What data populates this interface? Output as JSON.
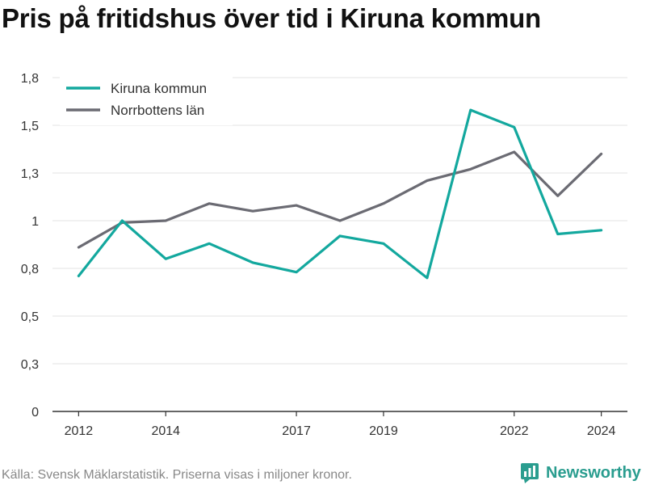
{
  "chart_data": {
    "type": "line",
    "title": "Pris på fritidshus över tid i Kiruna kommun",
    "x": [
      2012,
      2013,
      2014,
      2015,
      2016,
      2017,
      2018,
      2019,
      2020,
      2021,
      2022,
      2023,
      2024
    ],
    "x_tick_labels": [
      "2012",
      "2014",
      "2017",
      "2019",
      "2022",
      "2024"
    ],
    "x_tick_values": [
      2012,
      2014,
      2017,
      2019,
      2022,
      2024
    ],
    "y_tick_labels": [
      "0",
      "0,3",
      "0,5",
      "0,8",
      "1",
      "1,3",
      "1,5",
      "1,8"
    ],
    "y_tick_values": [
      0,
      0.25,
      0.5,
      0.75,
      1.0,
      1.25,
      1.5,
      1.75
    ],
    "ylim": [
      0,
      1.75
    ],
    "xlim": [
      2011.4,
      2024.6
    ],
    "grid": true,
    "legend_position": "top-left",
    "series": [
      {
        "name": "Kiruna kommun",
        "color": "#13a89e",
        "values": [
          0.71,
          1.0,
          0.8,
          0.88,
          0.78,
          0.73,
          0.92,
          0.88,
          0.7,
          1.58,
          1.49,
          0.93,
          0.95
        ]
      },
      {
        "name": "Norrbottens län",
        "color": "#6b6b73",
        "values": [
          0.86,
          0.99,
          1.0,
          1.09,
          1.05,
          1.08,
          1.0,
          1.09,
          1.21,
          1.27,
          1.36,
          1.13,
          1.35
        ]
      }
    ]
  },
  "footer": {
    "source_text": "Källa: Svensk Mäklarstatistik. Priserna visas i miljoner kronor."
  },
  "brand": {
    "name": "Newsworthy",
    "icon": "bar-chart-logo-icon",
    "color": "#2a9d8f"
  }
}
